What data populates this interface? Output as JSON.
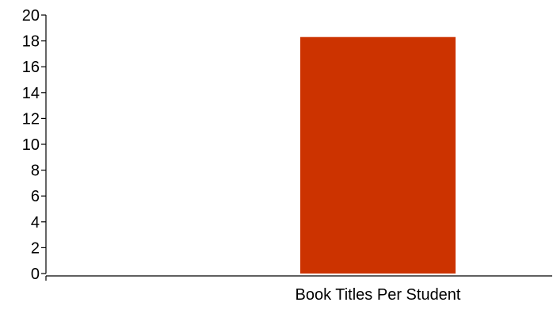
{
  "chart_data": {
    "type": "bar",
    "categories": [
      "Book Titles Per Student"
    ],
    "values": [
      18.3
    ],
    "title": "",
    "xlabel": "",
    "ylabel": "",
    "ylim": [
      0,
      20
    ],
    "yticks": [
      0,
      2,
      4,
      6,
      8,
      10,
      12,
      14,
      16,
      18,
      20
    ],
    "grid": false,
    "legend": "none",
    "colors": {
      "bar": "#CC3300",
      "axis": "#000000"
    }
  }
}
